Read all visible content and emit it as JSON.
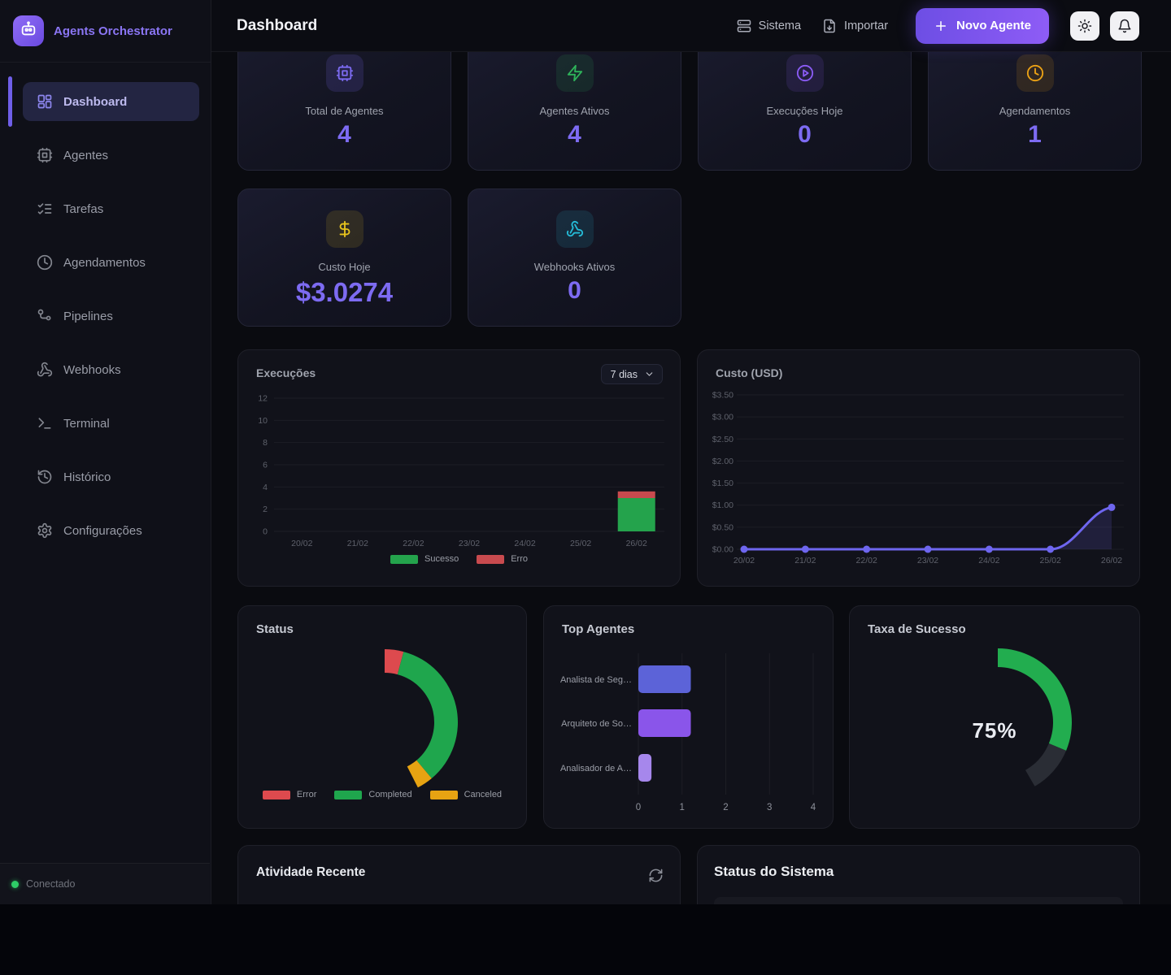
{
  "app": {
    "brand": "Agents Orchestrator",
    "connection_status": "Conectado",
    "accent_color": "#7d6bf2"
  },
  "header": {
    "title": "Dashboard",
    "actions": {
      "system": "Sistema",
      "import": "Importar",
      "new_agent": "Novo Agente"
    }
  },
  "sidebar": {
    "items": [
      {
        "id": "dashboard",
        "label": "Dashboard",
        "icon": "dashboard-icon",
        "active": true
      },
      {
        "id": "agentes",
        "label": "Agentes",
        "icon": "cpu-icon",
        "active": false
      },
      {
        "id": "tarefas",
        "label": "Tarefas",
        "icon": "checklist-icon",
        "active": false
      },
      {
        "id": "agendamentos",
        "label": "Agendamentos",
        "icon": "clock-icon",
        "active": false
      },
      {
        "id": "pipelines",
        "label": "Pipelines",
        "icon": "pipeline-icon",
        "active": false
      },
      {
        "id": "webhooks",
        "label": "Webhooks",
        "icon": "webhook-icon",
        "active": false
      },
      {
        "id": "terminal",
        "label": "Terminal",
        "icon": "terminal-icon",
        "active": false
      },
      {
        "id": "historico",
        "label": "Histórico",
        "icon": "history-icon",
        "active": false
      },
      {
        "id": "configuracoes",
        "label": "Configurações",
        "icon": "gear-icon",
        "active": false
      }
    ]
  },
  "stats": [
    {
      "label": "Total de Agentes",
      "value": "4",
      "icon": "cpu-icon",
      "icon_color": "#7d6bf2",
      "icon_bg": "rgba(125,107,242,0.16)"
    },
    {
      "label": "Agentes Ativos",
      "value": "4",
      "icon": "zap-icon",
      "icon_color": "#2eb35a",
      "icon_bg": "rgba(46,179,90,0.13)"
    },
    {
      "label": "Execuções Hoje",
      "value": "0",
      "icon": "play-circle-icon",
      "icon_color": "#8b5cf6",
      "icon_bg": "rgba(139,92,246,0.13)"
    },
    {
      "label": "Agendamentos",
      "value": "1",
      "icon": "clock-icon",
      "icon_color": "#eda315",
      "icon_bg": "rgba(237,163,21,0.13)"
    },
    {
      "label": "Custo Hoje",
      "value": "$3.0274",
      "icon": "dollar-icon",
      "icon_color": "#e7c41d",
      "icon_bg": "rgba(231,196,29,0.13)",
      "big": true
    },
    {
      "label": "Webhooks Ativos",
      "value": "0",
      "icon": "webhook-icon",
      "icon_color": "#25bcd8",
      "icon_bg": "rgba(37,188,216,0.13)"
    }
  ],
  "chart_data": [
    {
      "id": "execucoes",
      "type": "bar",
      "title": "Execuções",
      "range_selector": "7 dias",
      "categories": [
        "20/02",
        "21/02",
        "22/02",
        "23/02",
        "24/02",
        "25/02",
        "26/02"
      ],
      "series": [
        {
          "name": "Sucesso",
          "color": "#24a34c",
          "values": [
            0,
            0,
            0,
            0,
            0,
            0,
            3
          ]
        },
        {
          "name": "Erro",
          "color": "#c84a4e",
          "values": [
            0,
            0,
            0,
            0,
            0,
            0,
            0.6
          ]
        }
      ],
      "stacked": true,
      "ylim": [
        0,
        12
      ],
      "yticks": [
        0,
        2,
        4,
        6,
        8,
        10,
        12
      ],
      "grid": true,
      "legend_position": "bottom"
    },
    {
      "id": "custo",
      "type": "area",
      "title": "Custo (USD)",
      "x": [
        "20/02",
        "21/02",
        "22/02",
        "23/02",
        "24/02",
        "25/02",
        "26/02"
      ],
      "series": [
        {
          "name": "Custo",
          "color": "#6e66ef",
          "values": [
            0,
            0,
            0,
            0,
            0,
            0,
            0.95
          ]
        }
      ],
      "ylim": [
        0,
        3.5
      ],
      "yticks": [
        0,
        0.5,
        1,
        1.5,
        2,
        2.5,
        3,
        3.5
      ],
      "ytick_prefix": "$",
      "grid": true
    },
    {
      "id": "status",
      "type": "donut",
      "title": "Status",
      "slices": [
        {
          "label": "Error",
          "color": "#dd4a4e",
          "deg": 15
        },
        {
          "label": "Completed",
          "color": "#1fa64d",
          "deg": 125
        },
        {
          "label": "Canceled",
          "color": "#e7a312",
          "deg": 13
        }
      ],
      "start_deg": 0,
      "legend_position": "bottom"
    },
    {
      "id": "top-agentes",
      "type": "hbar",
      "title": "Top Agentes",
      "categories": [
        "Analista de Seg…",
        "Arquiteto de So…",
        "Analisador de A…"
      ],
      "values": [
        1.2,
        1.2,
        0.3
      ],
      "bar_colors": [
        "#5c63d8",
        "#8a55ea",
        "#a687ec"
      ],
      "xlim": [
        0,
        4
      ],
      "xticks": [
        0,
        1,
        2,
        3,
        4
      ],
      "grid": true
    },
    {
      "id": "taxa-sucesso",
      "type": "gauge",
      "title": "Taxa de Sucesso",
      "value_pct": 75,
      "display": "75%",
      "color": "#22ad4f",
      "track_color": "#2a2d35",
      "arc_total_deg": 150
    }
  ],
  "activity": {
    "title": "Atividade Recente"
  },
  "system_status": {
    "title": "Status do Sistema"
  }
}
